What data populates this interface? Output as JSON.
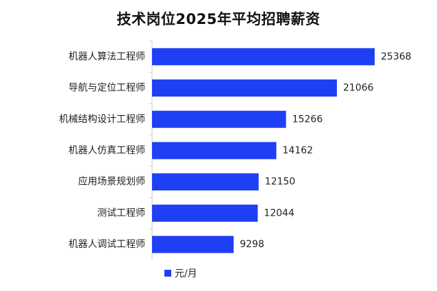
{
  "chart_data": {
    "type": "bar",
    "orientation": "horizontal",
    "title": "技术岗位2025年平均招聘薪资",
    "categories": [
      "机器人算法工程师",
      "导航与定位工程师",
      "机械结构设计工程师",
      "机器人仿真工程师",
      "应用场景规划师",
      "测试工程师",
      "机器人调试工程师"
    ],
    "series": [
      {
        "name": "元/月",
        "values": [
          25368,
          21066,
          15266,
          14162,
          12150,
          12044,
          9298
        ],
        "color": "#1f3ff5"
      }
    ],
    "xlim": [
      0,
      25368
    ],
    "grid": false,
    "legend": "bottom",
    "show_data_labels": true
  }
}
